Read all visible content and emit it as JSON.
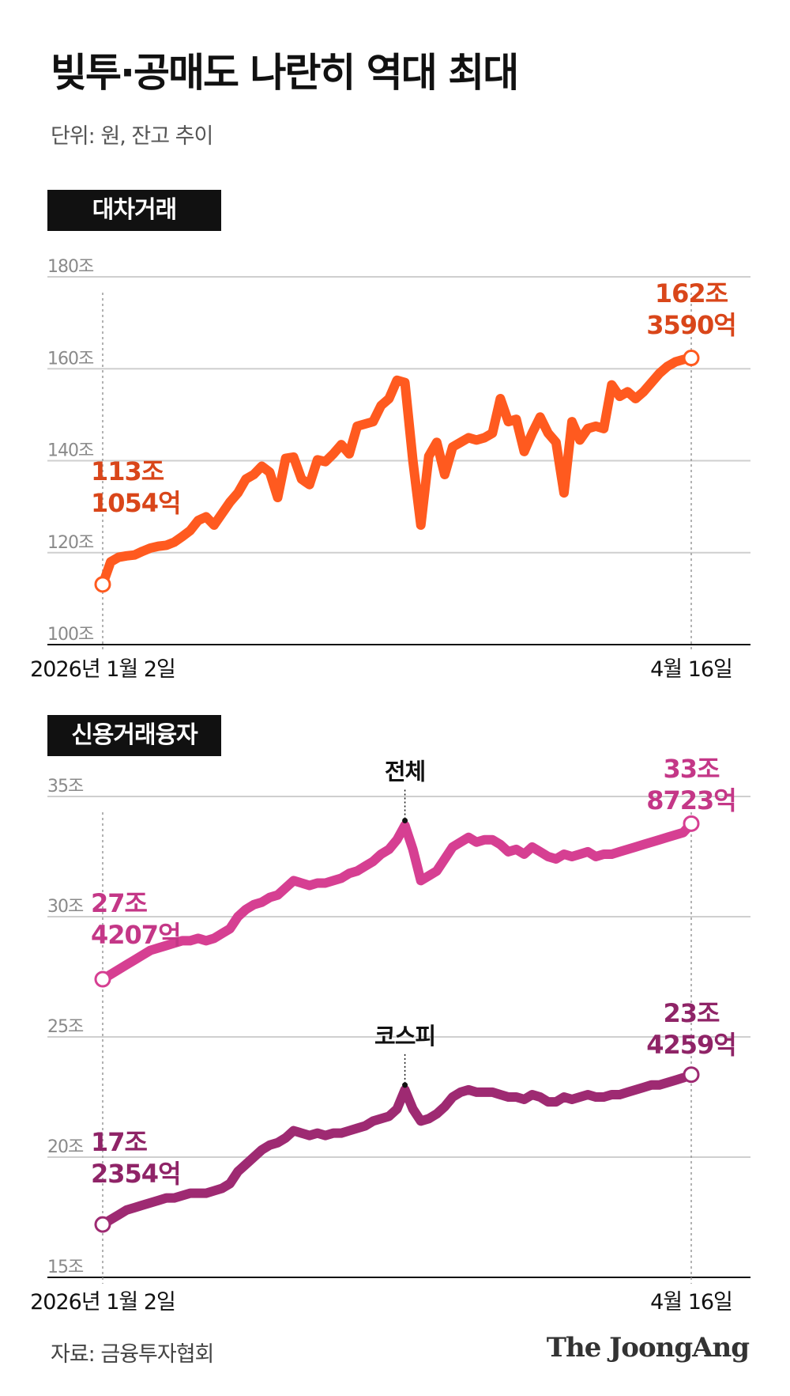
{
  "header": {
    "title": "빚투·공매도 나란히 역대 최대",
    "subtitle": "단위: 원, 잔고 추이"
  },
  "footer": {
    "source": "자료: 금융투자협회",
    "logo": "The JoongAng"
  },
  "colors": {
    "lending": "#ff5a1f",
    "lending_label": "#d9461a",
    "total": "#d63f92",
    "total_label": "#c43787",
    "kospi": "#9e2a72",
    "kospi_label": "#8f2467",
    "grid": "#cfcfcf"
  },
  "chart_data": [
    {
      "type": "line",
      "section_label": "대차거래",
      "xlim": [
        0,
        74
      ],
      "ylim": [
        100,
        180
      ],
      "y_ticks": [
        {
          "value": 100,
          "label": "100조"
        },
        {
          "value": 120,
          "label": "120조"
        },
        {
          "value": 140,
          "label": "140조"
        },
        {
          "value": 160,
          "label": "160조"
        },
        {
          "value": 180,
          "label": "180조"
        }
      ],
      "x_tick_labels": [
        {
          "x": 0,
          "label": "2026년 1월 2일"
        },
        {
          "x": 74,
          "label": "4월 16일"
        }
      ],
      "series": [
        {
          "color_key": "lending",
          "start_label": [
            "113조",
            "1054억"
          ],
          "end_label": [
            "162조",
            "3590억"
          ],
          "values": [
            113.1,
            118,
            119,
            119.3,
            119.5,
            120.3,
            121,
            121.4,
            121.6,
            122.3,
            123.5,
            124.8,
            127,
            127.8,
            126,
            128.5,
            131,
            133,
            136,
            137,
            138.8,
            137.5,
            132,
            140.5,
            140.8,
            136,
            134.8,
            140.2,
            139.8,
            141.5,
            143.5,
            141.5,
            147.5,
            148,
            148.5,
            152,
            153.5,
            157.5,
            157,
            140,
            126,
            141,
            144,
            137,
            143,
            144,
            145,
            144.5,
            145,
            146,
            153.5,
            148.5,
            149,
            142,
            146,
            149.5,
            146,
            144,
            133,
            148.5,
            144.5,
            147,
            147.5,
            147,
            156.5,
            154,
            155,
            153.5,
            155,
            157,
            159,
            160.5,
            161.5,
            162,
            162.359
          ]
        }
      ]
    },
    {
      "type": "line",
      "section_label": "신용거래융자",
      "xlim": [
        0,
        74
      ],
      "ylim": [
        15,
        35
      ],
      "y_ticks": [
        {
          "value": 15,
          "label": "15조"
        },
        {
          "value": 20,
          "label": "20조"
        },
        {
          "value": 25,
          "label": "25조"
        },
        {
          "value": 30,
          "label": "30조"
        },
        {
          "value": 35,
          "label": "35조"
        }
      ],
      "x_tick_labels": [
        {
          "x": 0,
          "label": "2026년 1월 2일"
        },
        {
          "x": 74,
          "label": "4월 16일"
        }
      ],
      "series": [
        {
          "name": "전체",
          "color_key": "total",
          "start_label": [
            "27조",
            "4207억"
          ],
          "end_label": [
            "33조",
            "8723억"
          ],
          "values": [
            27.4,
            27.6,
            27.8,
            28.0,
            28.2,
            28.4,
            28.6,
            28.7,
            28.8,
            28.9,
            29.0,
            29.0,
            29.1,
            29.0,
            29.1,
            29.3,
            29.5,
            30.0,
            30.3,
            30.5,
            30.6,
            30.8,
            30.9,
            31.2,
            31.5,
            31.4,
            31.3,
            31.4,
            31.4,
            31.5,
            31.6,
            31.8,
            31.9,
            32.1,
            32.3,
            32.6,
            32.8,
            33.2,
            33.8,
            32.8,
            31.5,
            31.7,
            31.9,
            32.4,
            32.9,
            33.1,
            33.3,
            33.1,
            33.2,
            33.2,
            33.0,
            32.7,
            32.8,
            32.6,
            32.9,
            32.7,
            32.5,
            32.4,
            32.6,
            32.5,
            32.6,
            32.7,
            32.5,
            32.6,
            32.6,
            32.7,
            32.8,
            32.9,
            33.0,
            33.1,
            33.2,
            33.3,
            33.4,
            33.5,
            33.87
          ]
        },
        {
          "name": "코스피",
          "color_key": "kospi",
          "start_label": [
            "17조",
            "2354억"
          ],
          "end_label": [
            "23조",
            "4259억"
          ],
          "values": [
            17.2,
            17.4,
            17.6,
            17.8,
            17.9,
            18.0,
            18.1,
            18.2,
            18.3,
            18.3,
            18.4,
            18.5,
            18.5,
            18.5,
            18.6,
            18.7,
            18.9,
            19.4,
            19.7,
            20.0,
            20.3,
            20.5,
            20.6,
            20.8,
            21.1,
            21.0,
            20.9,
            21.0,
            20.9,
            21.0,
            21.0,
            21.1,
            21.2,
            21.3,
            21.5,
            21.6,
            21.7,
            22.0,
            22.8,
            22.0,
            21.5,
            21.6,
            21.8,
            22.1,
            22.5,
            22.7,
            22.8,
            22.7,
            22.7,
            22.7,
            22.6,
            22.5,
            22.5,
            22.4,
            22.6,
            22.5,
            22.3,
            22.3,
            22.5,
            22.4,
            22.5,
            22.6,
            22.5,
            22.5,
            22.6,
            22.6,
            22.7,
            22.8,
            22.9,
            23.0,
            23.0,
            23.1,
            23.2,
            23.3,
            23.43
          ]
        }
      ],
      "annotations": [
        {
          "series_index": 0,
          "x": 38,
          "label": "전체"
        },
        {
          "series_index": 1,
          "x": 38,
          "label": "코스피"
        }
      ]
    }
  ]
}
